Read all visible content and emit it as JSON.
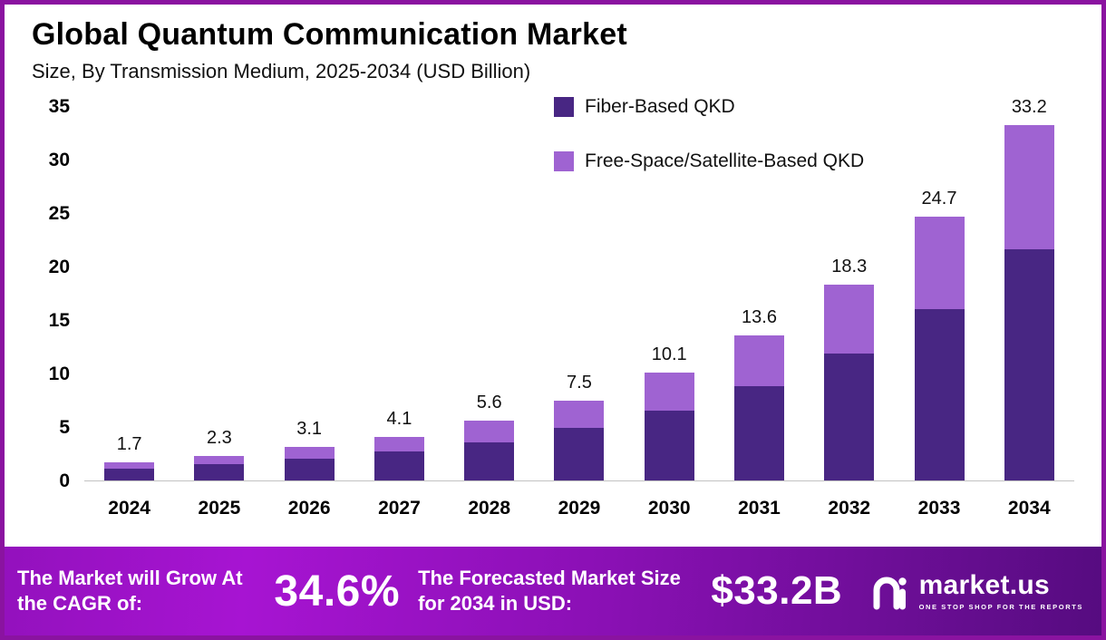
{
  "header": {
    "title": "Global Quantum Communication Market",
    "subtitle": "Size, By Transmission Medium, 2025-2034 (USD Billion)"
  },
  "chart_data": {
    "type": "bar",
    "stacked": true,
    "title": "Global Quantum Communication Market",
    "subtitle": "Size, By Transmission Medium, 2025-2034 (USD Billion)",
    "categories": [
      "2024",
      "2025",
      "2026",
      "2027",
      "2028",
      "2029",
      "2030",
      "2031",
      "2032",
      "2033",
      "2034"
    ],
    "series": [
      {
        "name": "Fiber-Based QKD",
        "color": "#482683",
        "values": [
          1.1,
          1.5,
          2.0,
          2.7,
          3.6,
          4.9,
          6.5,
          8.8,
          11.9,
          16.0,
          21.6
        ]
      },
      {
        "name": "Free-Space/Satellite-Based QKD",
        "color": "#9f63d2",
        "values": [
          0.6,
          0.8,
          1.1,
          1.4,
          2.0,
          2.6,
          3.6,
          4.8,
          6.4,
          8.7,
          11.6
        ]
      }
    ],
    "totals": [
      1.7,
      2.3,
      3.1,
      4.1,
      5.6,
      7.5,
      10.1,
      13.6,
      18.3,
      24.7,
      33.2
    ],
    "ylabel": "",
    "xlabel": "",
    "ylim": [
      0,
      35
    ],
    "yticks": [
      35,
      30,
      25,
      20,
      15,
      10,
      5,
      0
    ],
    "grid": false,
    "legend_position": "top-right",
    "units": "USD Billion"
  },
  "banner": {
    "cagr_label": "The Market will Grow At the CAGR of:",
    "cagr_value": "34.6%",
    "forecast_label": "The Forecasted Market Size for 2034 in USD:",
    "forecast_value": "$33.2B",
    "logo_text": "market.us",
    "logo_tagline": "One Stop Shop For The Reports"
  },
  "colors": {
    "fiber_series": "#482683",
    "freespace_series": "#9f63d2",
    "page_border": "#8a13a0",
    "banner_gradient_start": "#a714d2",
    "banner_gradient_end": "#560c80",
    "axis_line": "#c2c2c2"
  }
}
